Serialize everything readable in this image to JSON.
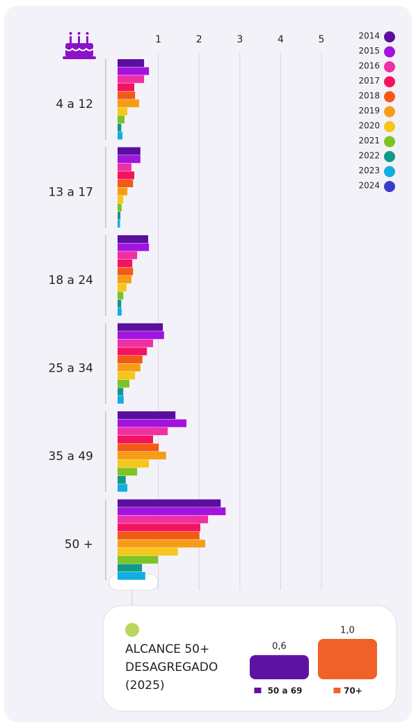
{
  "chart_data": [
    {
      "type": "barh",
      "categories": [
        "4 a 12",
        "13 a 17",
        "18 a 24",
        "25 a 34",
        "35 a 49",
        "50 +"
      ],
      "series": [
        {
          "name": "2014",
          "color": "#5b0f9e",
          "values": [
            0.65,
            0.56,
            0.75,
            1.11,
            1.42,
            2.53
          ]
        },
        {
          "name": "2015",
          "color": "#a313e0",
          "values": [
            0.77,
            0.56,
            0.77,
            1.14,
            1.69,
            2.65
          ]
        },
        {
          "name": "2016",
          "color": "#ef2fa4",
          "values": [
            0.65,
            0.34,
            0.48,
            0.87,
            1.23,
            2.22
          ]
        },
        {
          "name": "2017",
          "color": "#f5125e",
          "values": [
            0.41,
            0.41,
            0.36,
            0.72,
            0.87,
            2.03
          ]
        },
        {
          "name": "2018",
          "color": "#f45a16",
          "values": [
            0.43,
            0.38,
            0.38,
            0.61,
            1.01,
            2.01
          ]
        },
        {
          "name": "2019",
          "color": "#f79d15",
          "values": [
            0.53,
            0.24,
            0.34,
            0.56,
            1.19,
            2.15
          ]
        },
        {
          "name": "2020",
          "color": "#f6c61a",
          "values": [
            0.24,
            0.14,
            0.22,
            0.43,
            0.77,
            1.48
          ]
        },
        {
          "name": "2021",
          "color": "#7cc324",
          "values": [
            0.17,
            0.1,
            0.14,
            0.29,
            0.48,
            0.99
          ]
        },
        {
          "name": "2022",
          "color": "#0f9a8a",
          "values": [
            0.09,
            0.07,
            0.09,
            0.14,
            0.2,
            0.6
          ]
        },
        {
          "name": "2023",
          "color": "#12aee0",
          "values": [
            0.12,
            0.06,
            0.1,
            0.15,
            0.24,
            0.68
          ]
        },
        {
          "name": "2024",
          "color": "#3a3dc9",
          "values": [
            null,
            null,
            null,
            null,
            null,
            null
          ]
        }
      ],
      "xlim": [
        0,
        5
      ],
      "xticks": [
        1,
        2,
        3,
        4,
        5
      ],
      "grid": true
    },
    {
      "type": "bar",
      "title": "ALCANCE 50+",
      "subtitle": "DESAGREGADO",
      "note": "(2025)",
      "categories": [
        "50 a 69",
        "70+"
      ],
      "values": [
        0.6,
        1.0
      ],
      "value_labels": [
        "0,6",
        "1,0"
      ],
      "colors": [
        "#5d12a3",
        "#f0612a"
      ],
      "ylim": [
        0,
        1
      ]
    }
  ]
}
